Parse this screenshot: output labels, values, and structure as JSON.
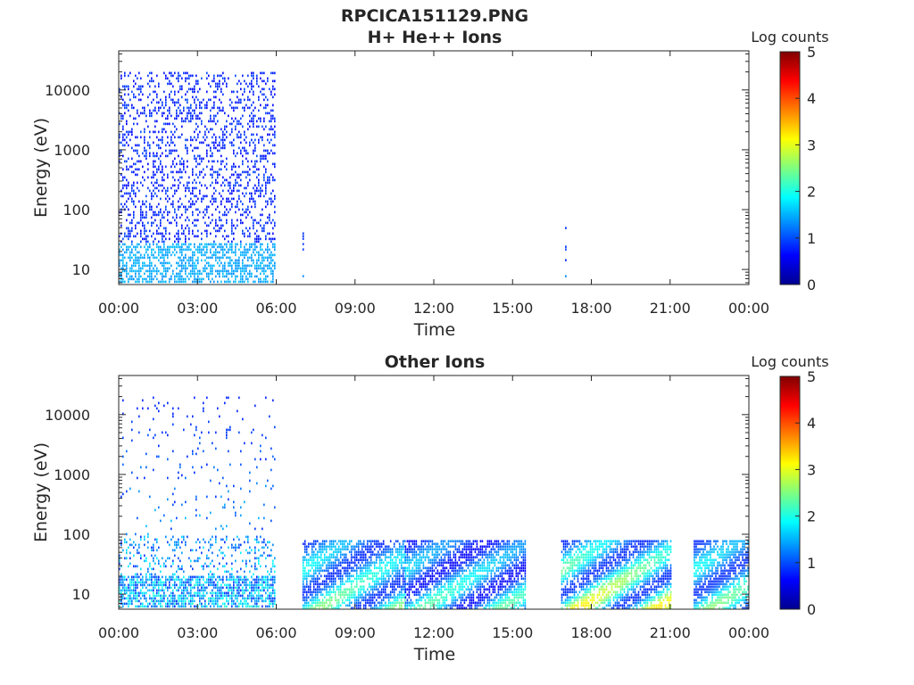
{
  "figure": {
    "filename_title": "RPCICA151129.PNG"
  },
  "colormap": "jet",
  "chart_data": [
    {
      "type": "heatmap",
      "title": "H+ He++ Ions",
      "xlabel": "Time",
      "ylabel": "Energy (eV)",
      "yscale": "log",
      "ylim": [
        5.6,
        45000
      ],
      "xlim_hours": [
        0,
        24
      ],
      "x_ticks": [
        "00:00",
        "03:00",
        "06:00",
        "09:00",
        "12:00",
        "15:00",
        "18:00",
        "21:00",
        "00:00"
      ],
      "y_ticks": [
        {
          "value": 10,
          "label": "10"
        },
        {
          "value": 100,
          "label": "100"
        },
        {
          "value": 1000,
          "label": "1000"
        },
        {
          "value": 10000,
          "label": "10000"
        }
      ],
      "colorbar": {
        "label": "Log counts",
        "min": 0,
        "max": 5,
        "ticks": [
          "0",
          "1",
          "2",
          "3",
          "4",
          "5"
        ]
      },
      "activity_intervals": [
        {
          "start_hour": 0.0,
          "end_hour": 5.95,
          "emin_ev": 6,
          "emax_ev": 20000,
          "level_low": 0.6,
          "level_high": 1.6,
          "pattern": "sparse"
        },
        {
          "start_hour": 7.0,
          "end_hour": 7.05,
          "emin_ev": 6,
          "emax_ev": 70,
          "level_low": 0.8,
          "level_high": 1.3,
          "pattern": "sparse"
        },
        {
          "start_hour": 17.0,
          "end_hour": 17.05,
          "emin_ev": 6,
          "emax_ev": 70,
          "level_low": 0.8,
          "level_high": 1.4,
          "pattern": "sparse"
        }
      ]
    },
    {
      "type": "heatmap",
      "title": "Other Ions",
      "xlabel": "Time",
      "ylabel": "Energy (eV)",
      "yscale": "log",
      "ylim": [
        5.6,
        45000
      ],
      "xlim_hours": [
        0,
        24
      ],
      "x_ticks": [
        "00:00",
        "03:00",
        "06:00",
        "09:00",
        "12:00",
        "15:00",
        "18:00",
        "21:00",
        "00:00"
      ],
      "y_ticks": [
        {
          "value": 10,
          "label": "10"
        },
        {
          "value": 100,
          "label": "100"
        },
        {
          "value": 1000,
          "label": "1000"
        },
        {
          "value": 10000,
          "label": "10000"
        }
      ],
      "colorbar": {
        "label": "Log counts",
        "min": 0,
        "max": 5,
        "ticks": [
          "0",
          "1",
          "2",
          "3",
          "4",
          "5"
        ]
      },
      "activity_intervals": [
        {
          "start_hour": 0.0,
          "end_hour": 5.95,
          "emin_ev": 6,
          "emax_ev": 20000,
          "level_low": 0.8,
          "level_high": 2.2,
          "pattern": "spiky"
        },
        {
          "start_hour": 7.0,
          "end_hour": 10.9,
          "emin_ev": 6,
          "emax_ev": 80,
          "level_low": 0.8,
          "level_high": 2.6,
          "pattern": "dense"
        },
        {
          "start_hour": 10.9,
          "end_hour": 15.5,
          "emin_ev": 6,
          "emax_ev": 80,
          "level_low": 0.6,
          "level_high": 2.4,
          "pattern": "dense"
        },
        {
          "start_hour": 16.85,
          "end_hour": 21.0,
          "emin_ev": 6,
          "emax_ev": 80,
          "level_low": 0.8,
          "level_high": 3.3,
          "pattern": "dense"
        },
        {
          "start_hour": 21.9,
          "end_hour": 24.0,
          "emin_ev": 6,
          "emax_ev": 80,
          "level_low": 0.8,
          "level_high": 2.6,
          "pattern": "dense"
        }
      ]
    }
  ]
}
